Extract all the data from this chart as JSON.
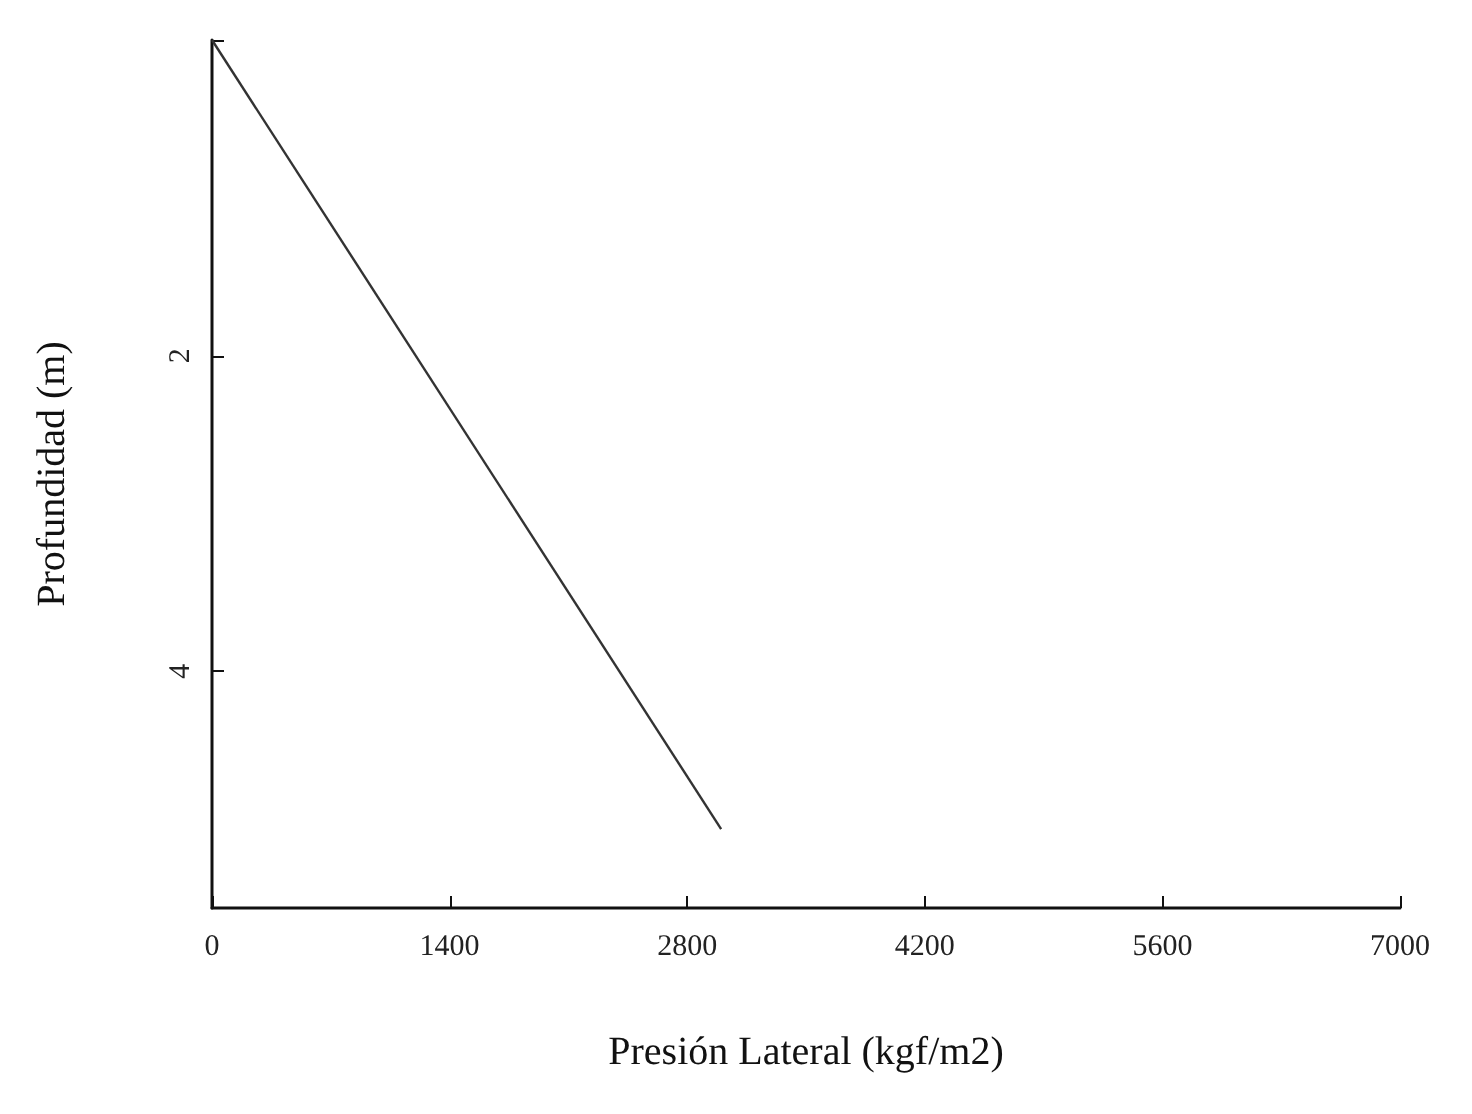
{
  "chart_data": {
    "type": "line",
    "xlabel": "Presión Lateral (kgf/m2)",
    "ylabel": "Profundidad (m)",
    "x": [
      0,
      3000
    ],
    "series": [
      {
        "color": "#333333",
        "values": [
          0,
          5
        ]
      }
    ],
    "xlim": [
      0,
      7000
    ],
    "xticks": [
      0,
      1400,
      2800,
      4200,
      5600,
      7000
    ],
    "ylim": [
      5.5,
      0
    ],
    "yticks": [
      {
        "value": 0,
        "label": null
      },
      2,
      4
    ],
    "marker": "none",
    "line_style": "solid"
  }
}
